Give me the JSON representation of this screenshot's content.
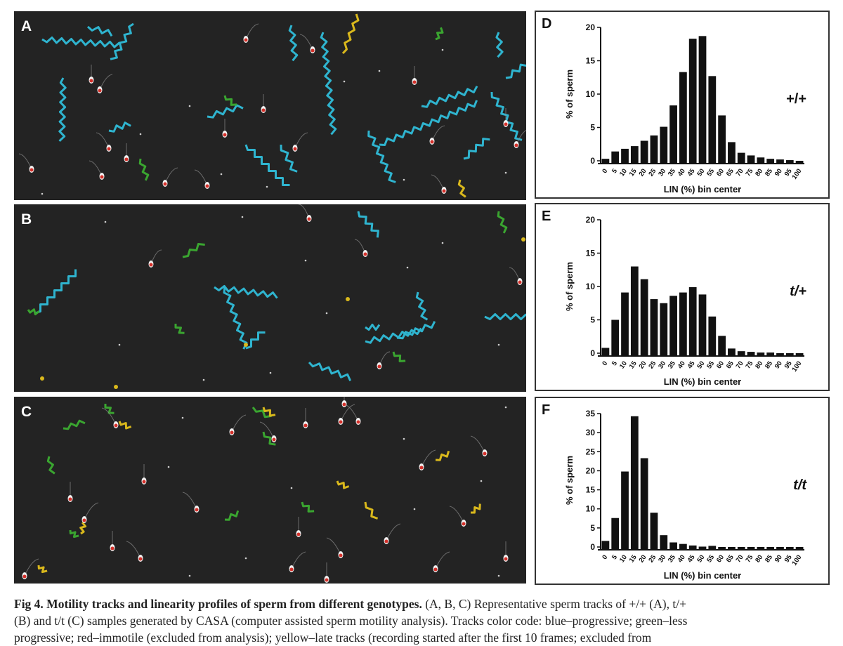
{
  "figure": {
    "panels": [
      {
        "letter": "A",
        "genotype": "+/+"
      },
      {
        "letter": "B",
        "genotype": "t/+"
      },
      {
        "letter": "C",
        "genotype": "t/t"
      }
    ],
    "track_colors": {
      "progressive": "#2fb4cf",
      "less_progressive": "#3aa530",
      "immotile": "#d4302a",
      "late": "#d9b81c"
    }
  },
  "chart_data": [
    {
      "type": "bar",
      "letter": "D",
      "annotation": "+/+",
      "xlabel": "LIN (%) bin center",
      "ylabel": "% of sperm",
      "ylim": [
        0,
        20
      ],
      "yticks": [
        0,
        5,
        10,
        15,
        20
      ],
      "categories": [
        "0",
        "5",
        "10",
        "15",
        "20",
        "25",
        "30",
        "35",
        "40",
        "45",
        "50",
        "55",
        "60",
        "65",
        "70",
        "75",
        "80",
        "85",
        "90",
        "95",
        "100"
      ],
      "values": [
        0.3,
        1.4,
        1.8,
        2.2,
        3.0,
        3.8,
        5.1,
        8.3,
        13.3,
        18.3,
        18.7,
        12.7,
        6.8,
        2.8,
        1.2,
        0.8,
        0.5,
        0.3,
        0.2,
        0.1,
        0.0
      ]
    },
    {
      "type": "bar",
      "letter": "E",
      "annotation": "t/+",
      "xlabel": "LIN (%) bin center",
      "ylabel": "% of sperm",
      "ylim": [
        0,
        20
      ],
      "yticks": [
        0,
        5,
        10,
        15,
        20
      ],
      "categories": [
        "0",
        "5",
        "10",
        "15",
        "20",
        "25",
        "30",
        "35",
        "40",
        "45",
        "50",
        "55",
        "60",
        "65",
        "70",
        "75",
        "80",
        "85",
        "90",
        "95",
        "100"
      ],
      "values": [
        0.8,
        5.0,
        9.1,
        13.0,
        11.1,
        8.1,
        7.5,
        8.6,
        9.1,
        9.9,
        8.8,
        5.5,
        2.6,
        0.7,
        0.3,
        0.2,
        0.1,
        0.1,
        0.0,
        0.0,
        0.0
      ]
    },
    {
      "type": "bar",
      "letter": "F",
      "annotation": "t/t",
      "xlabel": "LIN (%) bin center",
      "ylabel": "% of sperm",
      "ylim": [
        0,
        35
      ],
      "yticks": [
        0,
        5,
        10,
        15,
        20,
        25,
        30,
        35
      ],
      "categories": [
        "0",
        "5",
        "10",
        "15",
        "20",
        "25",
        "30",
        "35",
        "40",
        "45",
        "50",
        "55",
        "60",
        "65",
        "70",
        "75",
        "80",
        "85",
        "90",
        "95",
        "100"
      ],
      "values": [
        1.6,
        7.6,
        19.8,
        34.3,
        23.3,
        9.0,
        3.1,
        1.2,
        0.8,
        0.4,
        0.1,
        0.3,
        0.0,
        0.0,
        0.0,
        0.0,
        0.0,
        0.0,
        0.0,
        0.0,
        0.0
      ]
    }
  ],
  "caption": {
    "bold": "Fig 4. Motility tracks and linearity profiles of sperm from different genotypes.",
    "line1_rest": " (A, B, C) Representative sperm tracks of +/+ (A), t/+",
    "line2": "(B) and t/t (C) samples generated by CASA (computer assisted sperm motility analysis). Tracks color code: blue–progressive; green–less",
    "line3": "progressive; red–immotile (excluded from analysis); yellow–late tracks (recording started after the first 10 frames; excluded from"
  }
}
